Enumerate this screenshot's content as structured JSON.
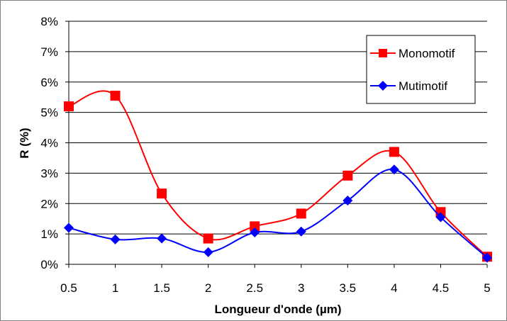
{
  "chart_data": {
    "type": "line",
    "title": "",
    "xlabel": "Longueur d'onde (µm)",
    "ylabel": "R (%)",
    "x": [
      0.5,
      1,
      1.5,
      2,
      2.5,
      3,
      3.5,
      4,
      4.5,
      5
    ],
    "x_tick_labels": [
      "0.5",
      "1",
      "1.5",
      "2",
      "2.5",
      "3",
      "3.5",
      "4",
      "4.5",
      "5"
    ],
    "y_tick_labels": [
      "0%",
      "1%",
      "2%",
      "3%",
      "4%",
      "5%",
      "6%",
      "7%",
      "8%"
    ],
    "ylim": [
      0,
      8
    ],
    "grid": "horizontal",
    "legend_position": "top-right",
    "series": [
      {
        "name": "Monomotif",
        "color": "#ff0000",
        "marker": "square",
        "values": [
          5.2,
          5.55,
          2.33,
          0.85,
          1.25,
          1.67,
          2.92,
          3.7,
          1.72,
          0.25
        ]
      },
      {
        "name": "Mutimotif",
        "color": "#0000ff",
        "marker": "diamond",
        "values": [
          1.2,
          0.82,
          0.85,
          0.4,
          1.05,
          1.08,
          2.1,
          3.12,
          1.55,
          0.22
        ]
      }
    ]
  }
}
